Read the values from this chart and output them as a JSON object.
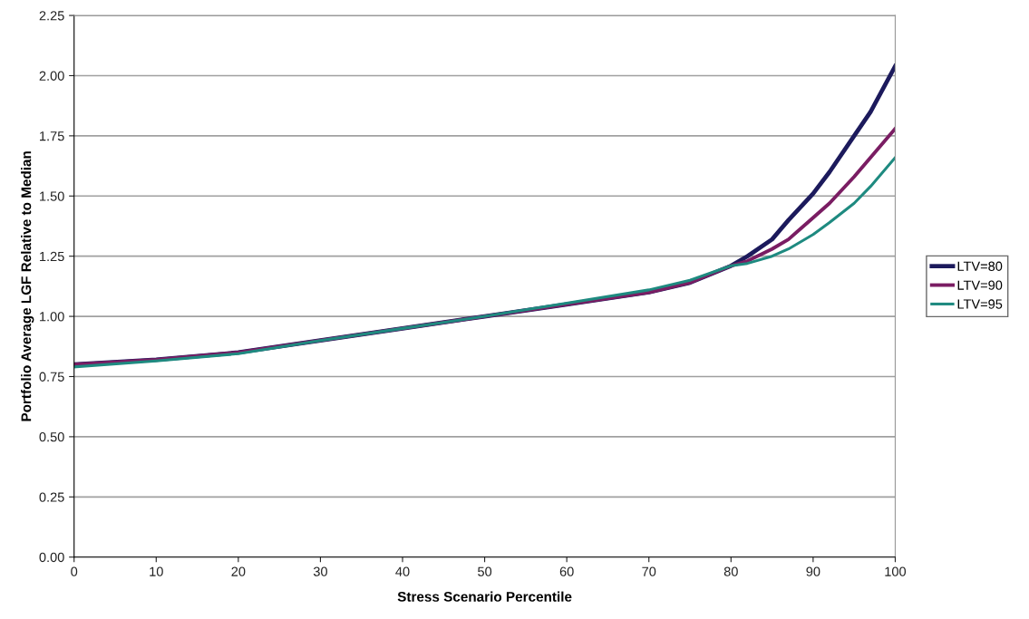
{
  "chart_data": {
    "type": "line",
    "xlabel": "Stress Scenario Percentile",
    "ylabel": "Portfolio Average LGF Relative to Median",
    "xlim": [
      0,
      100
    ],
    "xticks": [
      0,
      10,
      20,
      30,
      40,
      50,
      60,
      70,
      80,
      90,
      100
    ],
    "ylim": [
      0,
      2.25
    ],
    "yticks": [
      {
        "value": 0,
        "label": "0.00"
      },
      {
        "value": 0.25,
        "label": "0.25"
      },
      {
        "value": 0.5,
        "label": "0.50"
      },
      {
        "value": 0.75,
        "label": "0.75"
      },
      {
        "value": 1,
        "label": "1.00"
      },
      {
        "value": 1.25,
        "label": "1.25"
      },
      {
        "value": 1.5,
        "label": "1.50"
      },
      {
        "value": 1.75,
        "label": "1.75"
      },
      {
        "value": 2,
        "label": "2.00"
      },
      {
        "value": 2.25,
        "label": "2.25"
      }
    ],
    "grid": "y",
    "legend": "right",
    "marker": "none",
    "line_style": "solid",
    "x": [
      0,
      10,
      20,
      30,
      40,
      50,
      60,
      70,
      75,
      80,
      82,
      85,
      87,
      90,
      92,
      95,
      97,
      100
    ],
    "series": [
      {
        "name": "LTV=80",
        "color": "#1c1a5c",
        "values": [
          0.8,
          0.82,
          0.85,
          0.9,
          0.95,
          1.0,
          1.05,
          1.1,
          1.14,
          1.21,
          1.25,
          1.32,
          1.4,
          1.51,
          1.6,
          1.75,
          1.85,
          2.04
        ]
      },
      {
        "name": "LTV=90",
        "color": "#7a1d63",
        "values": [
          0.8,
          0.82,
          0.85,
          0.9,
          0.95,
          1.0,
          1.05,
          1.1,
          1.14,
          1.21,
          1.23,
          1.28,
          1.32,
          1.41,
          1.47,
          1.58,
          1.66,
          1.78
        ]
      },
      {
        "name": "LTV=95",
        "color": "#1e8a80",
        "values": [
          0.79,
          0.815,
          0.845,
          0.9,
          0.95,
          1.0,
          1.055,
          1.11,
          1.15,
          1.21,
          1.22,
          1.25,
          1.28,
          1.34,
          1.39,
          1.47,
          1.54,
          1.66
        ]
      }
    ]
  }
}
